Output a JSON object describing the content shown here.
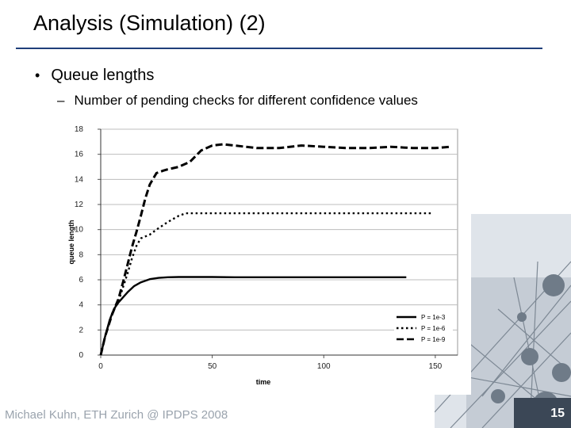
{
  "slide": {
    "title": "Analysis (Simulation) (2)",
    "bullet": "Queue lengths",
    "sub_bullet": "Number of pending checks for different confidence values",
    "footer": "Michael Kuhn, ETH Zurich @ IPDPS 2008",
    "page_number": "15"
  },
  "chart_data": {
    "type": "line",
    "title": "",
    "xlabel": "time",
    "ylabel": "queue length",
    "xlim": [
      0,
      160
    ],
    "ylim": [
      0,
      18
    ],
    "xticks": [
      0,
      50,
      100,
      150
    ],
    "yticks": [
      0,
      2,
      4,
      6,
      8,
      10,
      12,
      14,
      16,
      18
    ],
    "grid": true,
    "legend_position": "bottom-right",
    "series": [
      {
        "name": "P = 1e-3",
        "style": "solid",
        "x": [
          0,
          2,
          4,
          6,
          8,
          10,
          12,
          15,
          18,
          22,
          26,
          30,
          35,
          40,
          50,
          60,
          80,
          100,
          120,
          137
        ],
        "y": [
          0,
          1.5,
          2.8,
          3.7,
          4.2,
          4.6,
          5.0,
          5.5,
          5.8,
          6.05,
          6.15,
          6.2,
          6.22,
          6.22,
          6.22,
          6.2,
          6.2,
          6.2,
          6.2,
          6.2
        ]
      },
      {
        "name": "P = 1e-6",
        "style": "dotted",
        "x": [
          0,
          2,
          5,
          8,
          10,
          12,
          14,
          16,
          18,
          22,
          25,
          30,
          35,
          38,
          42,
          50,
          60,
          80,
          100,
          120,
          135,
          148
        ],
        "y": [
          0,
          1.5,
          3.3,
          4.3,
          5.4,
          6.5,
          7.7,
          8.7,
          9.3,
          9.6,
          10.0,
          10.6,
          11.1,
          11.3,
          11.3,
          11.3,
          11.3,
          11.3,
          11.3,
          11.3,
          11.3,
          11.3
        ]
      },
      {
        "name": "P = 1e-9",
        "style": "dashed",
        "x": [
          0,
          2,
          5,
          8,
          10,
          12,
          14,
          16,
          18,
          20,
          22,
          25,
          28,
          30,
          35,
          40,
          45,
          50,
          55,
          60,
          65,
          70,
          80,
          90,
          100,
          110,
          120,
          130,
          140,
          150,
          157
        ],
        "y": [
          0,
          1.5,
          3.2,
          4.5,
          5.8,
          7.2,
          8.6,
          9.8,
          11.1,
          12.5,
          13.6,
          14.5,
          14.7,
          14.8,
          15.0,
          15.4,
          16.3,
          16.7,
          16.8,
          16.7,
          16.6,
          16.5,
          16.5,
          16.7,
          16.6,
          16.5,
          16.5,
          16.6,
          16.5,
          16.5,
          16.6
        ]
      }
    ]
  }
}
